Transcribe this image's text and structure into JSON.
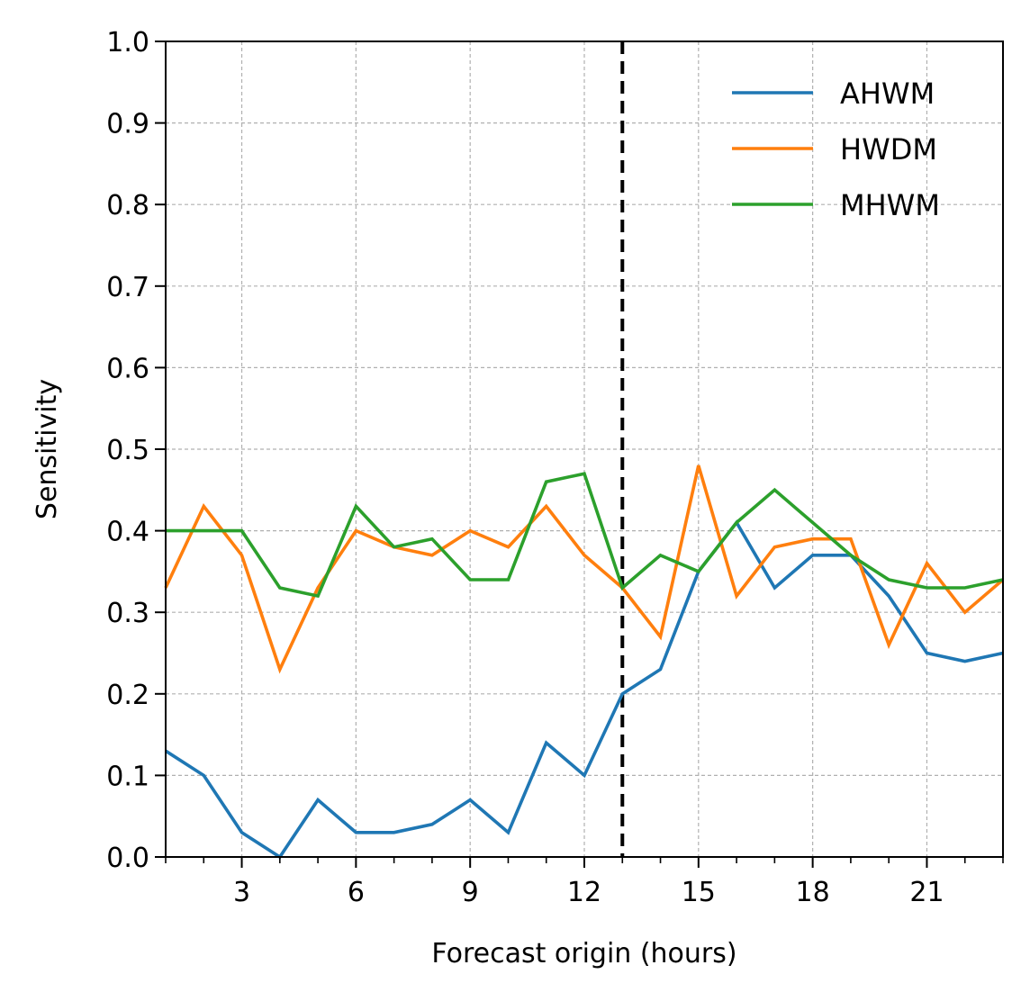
{
  "chart_data": {
    "type": "line",
    "xlabel": "Forecast origin (hours)",
    "ylabel": "Sensitivity",
    "xlim": [
      1,
      23
    ],
    "ylim": [
      0,
      1
    ],
    "x_major_ticks": [
      3,
      6,
      9,
      12,
      15,
      18,
      21
    ],
    "x_minor_ticks": [
      1,
      2,
      4,
      5,
      7,
      8,
      10,
      11,
      13,
      14,
      16,
      17,
      19,
      20,
      22,
      23
    ],
    "y_ticks": [
      "0.0",
      "0.1",
      "0.2",
      "0.3",
      "0.4",
      "0.5",
      "0.6",
      "0.7",
      "0.8",
      "0.9",
      "1.0"
    ],
    "grid": true,
    "vline_x": 13,
    "vline_style": "dashed",
    "legend_position": "top-right",
    "x": [
      1,
      2,
      3,
      4,
      5,
      6,
      7,
      8,
      9,
      10,
      11,
      12,
      13,
      14,
      15,
      16,
      17,
      18,
      19,
      20,
      21,
      22,
      23
    ],
    "series": [
      {
        "name": "AHWM",
        "color": "#1f77b4",
        "values": [
          0.13,
          0.1,
          0.03,
          0.0,
          0.07,
          0.03,
          0.03,
          0.04,
          0.07,
          0.03,
          0.14,
          0.1,
          0.2,
          0.23,
          0.35,
          0.41,
          0.33,
          0.37,
          0.37,
          0.32,
          0.25,
          0.24,
          0.25
        ]
      },
      {
        "name": "HWDM",
        "color": "#ff7f0e",
        "values": [
          0.33,
          0.43,
          0.37,
          0.23,
          0.33,
          0.4,
          0.38,
          0.37,
          0.4,
          0.38,
          0.43,
          0.37,
          0.33,
          0.27,
          0.48,
          0.32,
          0.38,
          0.39,
          0.39,
          0.26,
          0.36,
          0.3,
          0.34
        ]
      },
      {
        "name": "MHWM",
        "color": "#2ca02c",
        "values": [
          0.4,
          0.4,
          0.4,
          0.33,
          0.32,
          0.43,
          0.38,
          0.39,
          0.34,
          0.34,
          0.46,
          0.47,
          0.33,
          0.37,
          0.35,
          0.41,
          0.45,
          0.41,
          0.37,
          0.34,
          0.33,
          0.33,
          0.34
        ]
      }
    ]
  }
}
